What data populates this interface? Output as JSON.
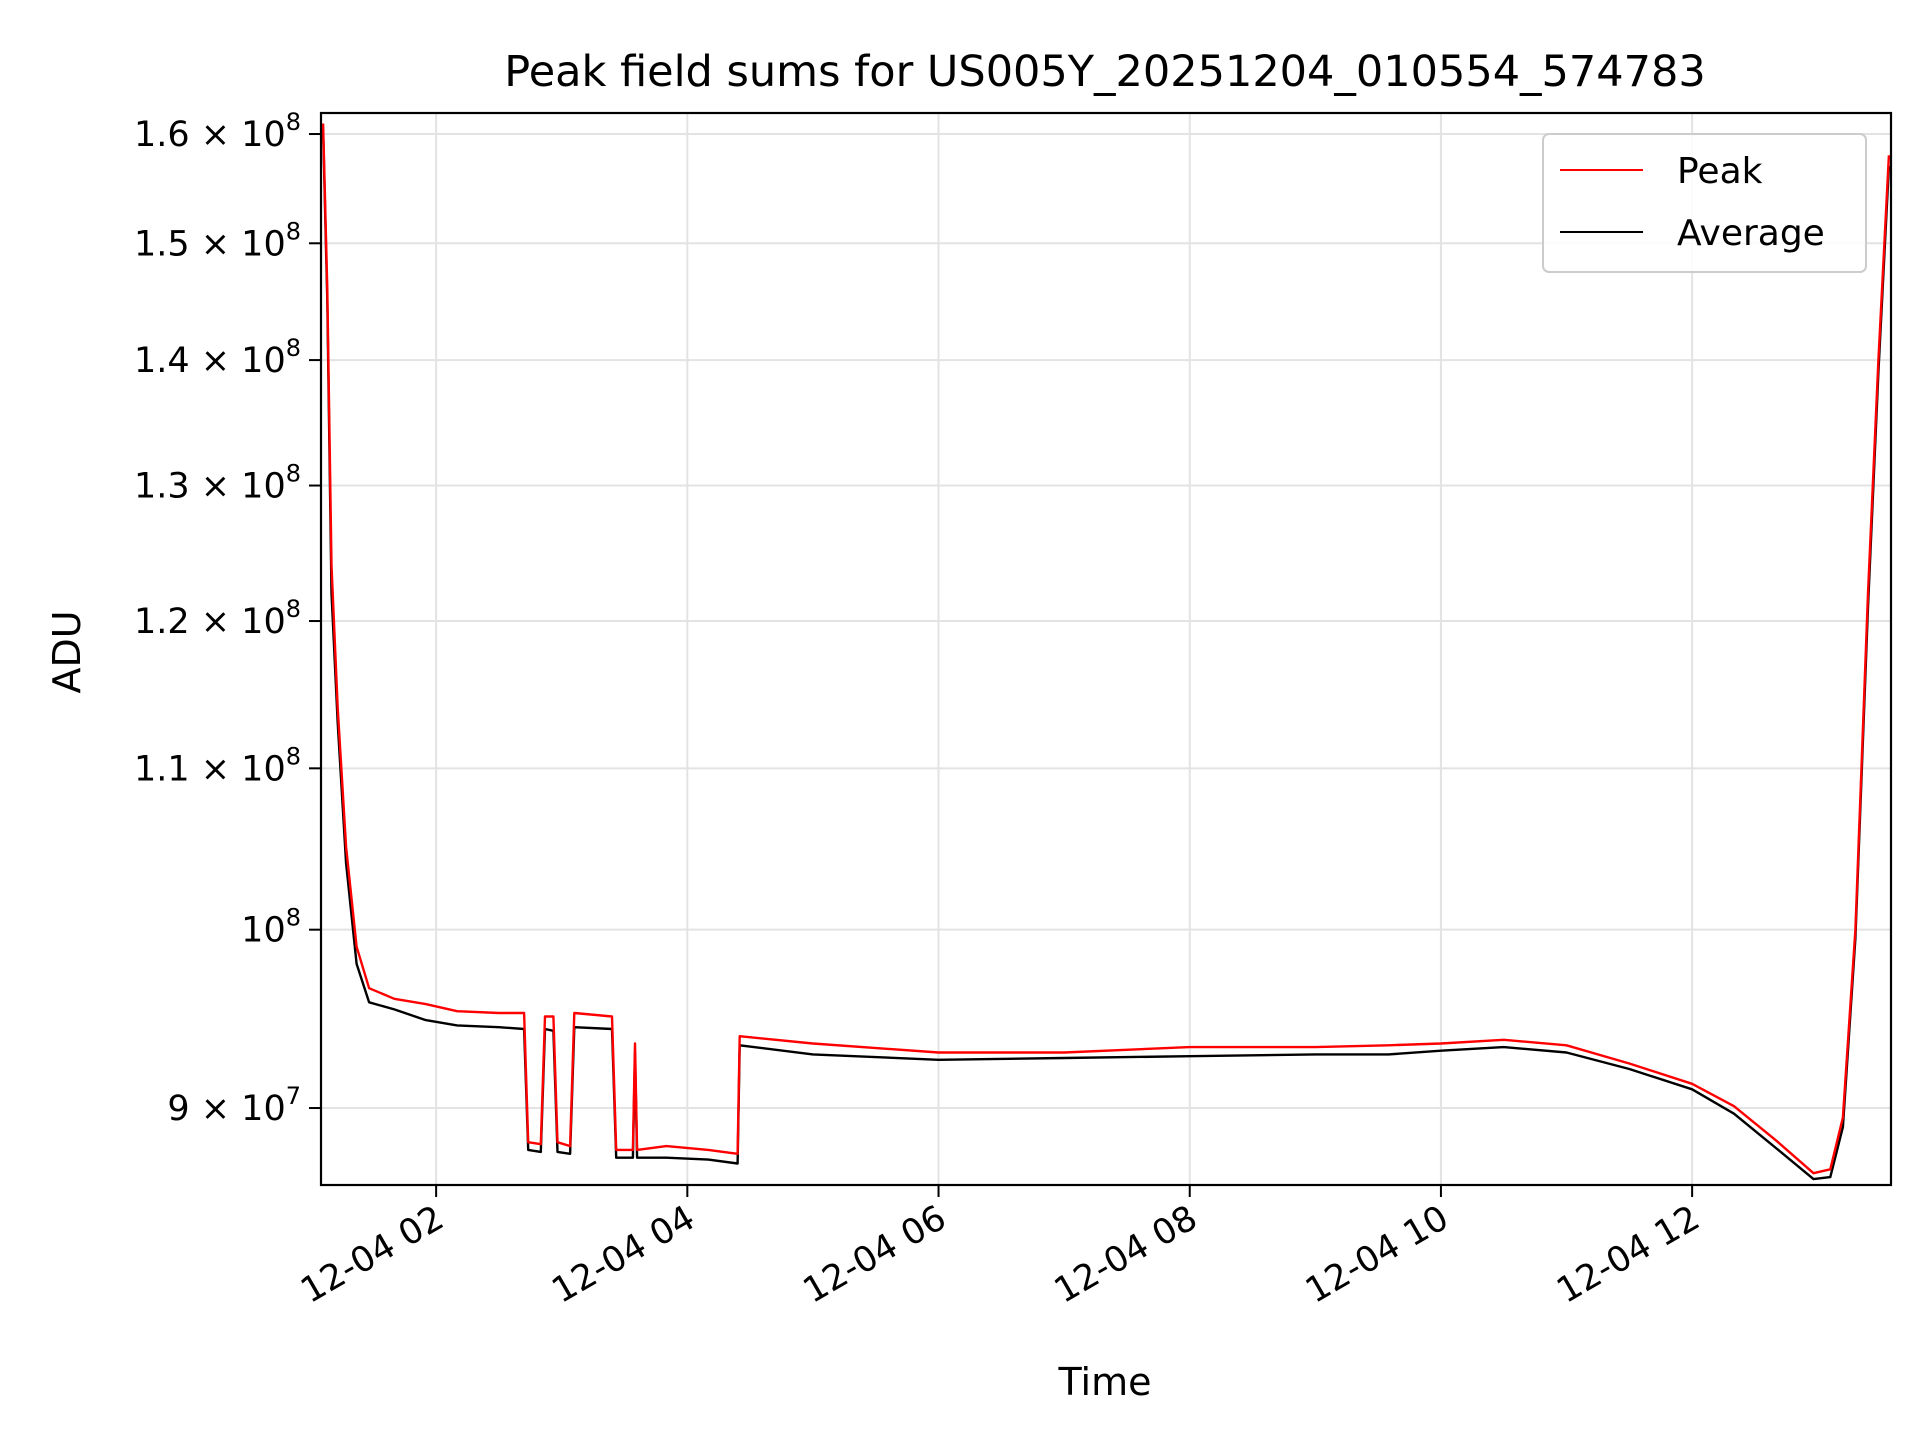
{
  "chart_data": {
    "type": "line",
    "title": "Peak field sums for US005Y_20251204_010554_574783",
    "xlabel": "Time",
    "ylabel": "ADU",
    "yscale": "log",
    "grid": true,
    "legend_position": "top-right",
    "xlim": [
      "2025-12-04 01:05",
      "2025-12-04 13:35"
    ],
    "ylim": [
      86000000,
      162000000
    ],
    "x_ticks": [
      {
        "label": "12-04 02",
        "value": "2025-12-04 02:00"
      },
      {
        "label": "12-04 04",
        "value": "2025-12-04 04:00"
      },
      {
        "label": "12-04 06",
        "value": "2025-12-04 06:00"
      },
      {
        "label": "12-04 08",
        "value": "2025-12-04 08:00"
      },
      {
        "label": "12-04 10",
        "value": "2025-12-04 10:00"
      },
      {
        "label": "12-04 12",
        "value": "2025-12-04 12:00"
      }
    ],
    "y_ticks": [
      {
        "mant": "1.6",
        "value": 160000000
      },
      {
        "mant": "1.5",
        "value": 150000000
      },
      {
        "mant": "1.4",
        "value": 140000000
      },
      {
        "mant": "1.3",
        "value": 130000000
      },
      {
        "mant": "1.2",
        "value": 120000000
      },
      {
        "mant": "1.1",
        "value": 110000000
      },
      {
        "mant": "",
        "value": 100000000
      },
      {
        "mant": "9",
        "value": 90000000
      }
    ],
    "series": [
      {
        "name": "Peak",
        "color": "#ff0000",
        "points": [
          [
            "2025-12-04 01:06",
            161000000
          ],
          [
            "2025-12-04 01:08",
            146000000
          ],
          [
            "2025-12-04 01:10",
            124000000
          ],
          [
            "2025-12-04 01:13",
            114000000
          ],
          [
            "2025-12-04 01:17",
            105000000
          ],
          [
            "2025-12-04 01:22",
            99000000
          ],
          [
            "2025-12-04 01:28",
            96600000
          ],
          [
            "2025-12-04 01:40",
            96000000
          ],
          [
            "2025-12-04 01:55",
            95700000
          ],
          [
            "2025-12-04 02:10",
            95300000
          ],
          [
            "2025-12-04 02:30",
            95200000
          ],
          [
            "2025-12-04 02:42",
            95200000
          ],
          [
            "2025-12-04 02:44",
            88200000
          ],
          [
            "2025-12-04 02:50",
            88100000
          ],
          [
            "2025-12-04 02:52",
            95000000
          ],
          [
            "2025-12-04 02:56",
            95000000
          ],
          [
            "2025-12-04 02:58",
            88200000
          ],
          [
            "2025-12-04 03:04",
            88000000
          ],
          [
            "2025-12-04 03:06",
            95200000
          ],
          [
            "2025-12-04 03:24",
            95000000
          ],
          [
            "2025-12-04 03:26",
            87800000
          ],
          [
            "2025-12-04 03:34",
            87800000
          ],
          [
            "2025-12-04 03:35",
            93500000
          ],
          [
            "2025-12-04 03:36",
            87800000
          ],
          [
            "2025-12-04 03:50",
            88000000
          ],
          [
            "2025-12-04 04:10",
            87800000
          ],
          [
            "2025-12-04 04:24",
            87600000
          ],
          [
            "2025-12-04 04:25",
            93900000
          ],
          [
            "2025-12-04 05:00",
            93500000
          ],
          [
            "2025-12-04 06:00",
            93000000
          ],
          [
            "2025-12-04 07:00",
            93000000
          ],
          [
            "2025-12-04 08:00",
            93300000
          ],
          [
            "2025-12-04 09:00",
            93300000
          ],
          [
            "2025-12-04 09:35",
            93400000
          ],
          [
            "2025-12-04 10:00",
            93500000
          ],
          [
            "2025-12-04 10:30",
            93700000
          ],
          [
            "2025-12-04 11:00",
            93400000
          ],
          [
            "2025-12-04 11:30",
            92400000
          ],
          [
            "2025-12-04 12:00",
            91300000
          ],
          [
            "2025-12-04 12:20",
            90100000
          ],
          [
            "2025-12-04 12:40",
            88300000
          ],
          [
            "2025-12-04 12:58",
            86600000
          ],
          [
            "2025-12-04 13:06",
            86800000
          ],
          [
            "2025-12-04 13:12",
            89500000
          ],
          [
            "2025-12-04 13:18",
            100000000
          ],
          [
            "2025-12-04 13:24",
            122000000
          ],
          [
            "2025-12-04 13:29",
            140000000
          ],
          [
            "2025-12-04 13:34",
            158000000
          ]
        ]
      },
      {
        "name": "Average",
        "color": "#000000",
        "points": [
          [
            "2025-12-04 01:06",
            160500000
          ],
          [
            "2025-12-04 01:08",
            145000000
          ],
          [
            "2025-12-04 01:10",
            122000000
          ],
          [
            "2025-12-04 01:13",
            113000000
          ],
          [
            "2025-12-04 01:17",
            104000000
          ],
          [
            "2025-12-04 01:22",
            98000000
          ],
          [
            "2025-12-04 01:28",
            95800000
          ],
          [
            "2025-12-04 01:40",
            95400000
          ],
          [
            "2025-12-04 01:55",
            94800000
          ],
          [
            "2025-12-04 02:10",
            94500000
          ],
          [
            "2025-12-04 02:30",
            94400000
          ],
          [
            "2025-12-04 02:42",
            94300000
          ],
          [
            "2025-12-04 02:44",
            87800000
          ],
          [
            "2025-12-04 02:50",
            87700000
          ],
          [
            "2025-12-04 02:52",
            94300000
          ],
          [
            "2025-12-04 02:56",
            94200000
          ],
          [
            "2025-12-04 02:58",
            87700000
          ],
          [
            "2025-12-04 03:04",
            87600000
          ],
          [
            "2025-12-04 03:06",
            94400000
          ],
          [
            "2025-12-04 03:24",
            94300000
          ],
          [
            "2025-12-04 03:26",
            87400000
          ],
          [
            "2025-12-04 03:34",
            87400000
          ],
          [
            "2025-12-04 03:35",
            93000000
          ],
          [
            "2025-12-04 03:36",
            87400000
          ],
          [
            "2025-12-04 03:50",
            87400000
          ],
          [
            "2025-12-04 04:10",
            87300000
          ],
          [
            "2025-12-04 04:24",
            87100000
          ],
          [
            "2025-12-04 04:25",
            93400000
          ],
          [
            "2025-12-04 05:00",
            92900000
          ],
          [
            "2025-12-04 06:00",
            92600000
          ],
          [
            "2025-12-04 07:00",
            92700000
          ],
          [
            "2025-12-04 08:00",
            92800000
          ],
          [
            "2025-12-04 09:00",
            92900000
          ],
          [
            "2025-12-04 09:35",
            92900000
          ],
          [
            "2025-12-04 10:00",
            93100000
          ],
          [
            "2025-12-04 10:30",
            93300000
          ],
          [
            "2025-12-04 11:00",
            93000000
          ],
          [
            "2025-12-04 11:30",
            92100000
          ],
          [
            "2025-12-04 12:00",
            91000000
          ],
          [
            "2025-12-04 12:20",
            89700000
          ],
          [
            "2025-12-04 12:40",
            87900000
          ],
          [
            "2025-12-04 12:58",
            86300000
          ],
          [
            "2025-12-04 13:06",
            86400000
          ],
          [
            "2025-12-04 13:12",
            89000000
          ],
          [
            "2025-12-04 13:18",
            99500000
          ],
          [
            "2025-12-04 13:24",
            121000000
          ],
          [
            "2025-12-04 13:29",
            139000000
          ],
          [
            "2025-12-04 13:34",
            157000000
          ]
        ]
      }
    ]
  }
}
